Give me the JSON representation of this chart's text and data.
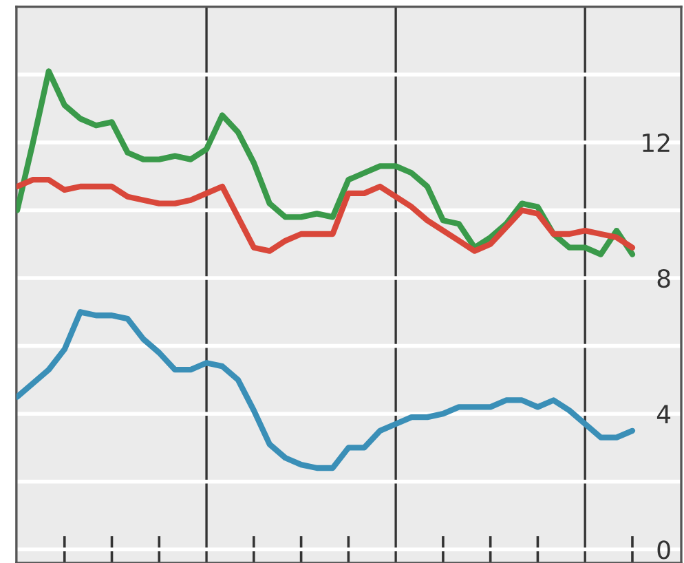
{
  "chart_data": {
    "type": "line",
    "categories": [
      null,
      null,
      null,
      null,
      null,
      null,
      null,
      null,
      null,
      null,
      null,
      null,
      null,
      null,
      null,
      null,
      null,
      null,
      null,
      null,
      null,
      null,
      null,
      null,
      null,
      null,
      null,
      null,
      null,
      null,
      null,
      null,
      null,
      null,
      null,
      null,
      null,
      null,
      null,
      null
    ],
    "series": [
      {
        "color": "#3a9a4a",
        "values": [
          10.0,
          12.0,
          14.1,
          13.1,
          12.7,
          12.5,
          12.6,
          11.7,
          11.5,
          11.5,
          11.6,
          11.5,
          11.8,
          12.8,
          12.3,
          11.4,
          10.2,
          9.8,
          9.8,
          9.9,
          9.8,
          10.9,
          11.1,
          11.3,
          11.3,
          11.1,
          10.7,
          9.7,
          9.6,
          8.9,
          9.2,
          9.6,
          10.2,
          10.1,
          9.3,
          8.9,
          8.9,
          8.7,
          9.4,
          8.7
        ]
      },
      {
        "color": "#d9473a",
        "values": [
          10.7,
          10.9,
          10.9,
          10.6,
          10.7,
          10.7,
          10.7,
          10.4,
          10.3,
          10.2,
          10.2,
          10.3,
          10.5,
          10.7,
          9.8,
          8.9,
          8.8,
          9.1,
          9.3,
          9.3,
          9.3,
          10.5,
          10.5,
          10.7,
          10.4,
          10.1,
          9.7,
          9.4,
          9.1,
          8.8,
          9.0,
          9.5,
          10.0,
          9.9,
          9.3,
          9.3,
          9.4,
          9.3,
          9.2,
          8.9
        ]
      },
      {
        "color": "#3a8fb7",
        "values": [
          4.5,
          4.9,
          5.3,
          5.9,
          7.0,
          6.9,
          6.9,
          6.8,
          6.2,
          5.8,
          5.3,
          5.3,
          5.5,
          5.4,
          5.0,
          4.1,
          3.1,
          2.7,
          2.5,
          2.4,
          2.4,
          3.0,
          3.0,
          3.5,
          3.7,
          3.9,
          3.9,
          4.0,
          4.2,
          4.2,
          4.2,
          4.4,
          4.4,
          4.2,
          4.4,
          4.1,
          3.7,
          3.3,
          3.3,
          3.5
        ]
      }
    ],
    "ylim": [
      -0.4,
      16
    ],
    "yticks": [
      0,
      {
        "value": 2,
        "label": null
      },
      4,
      {
        "value": 6,
        "label": null
      },
      8,
      {
        "value": 10,
        "label": null
      },
      12,
      {
        "value": 14,
        "label": null
      }
    ],
    "grid": true,
    "tick_labels": "y"
  }
}
